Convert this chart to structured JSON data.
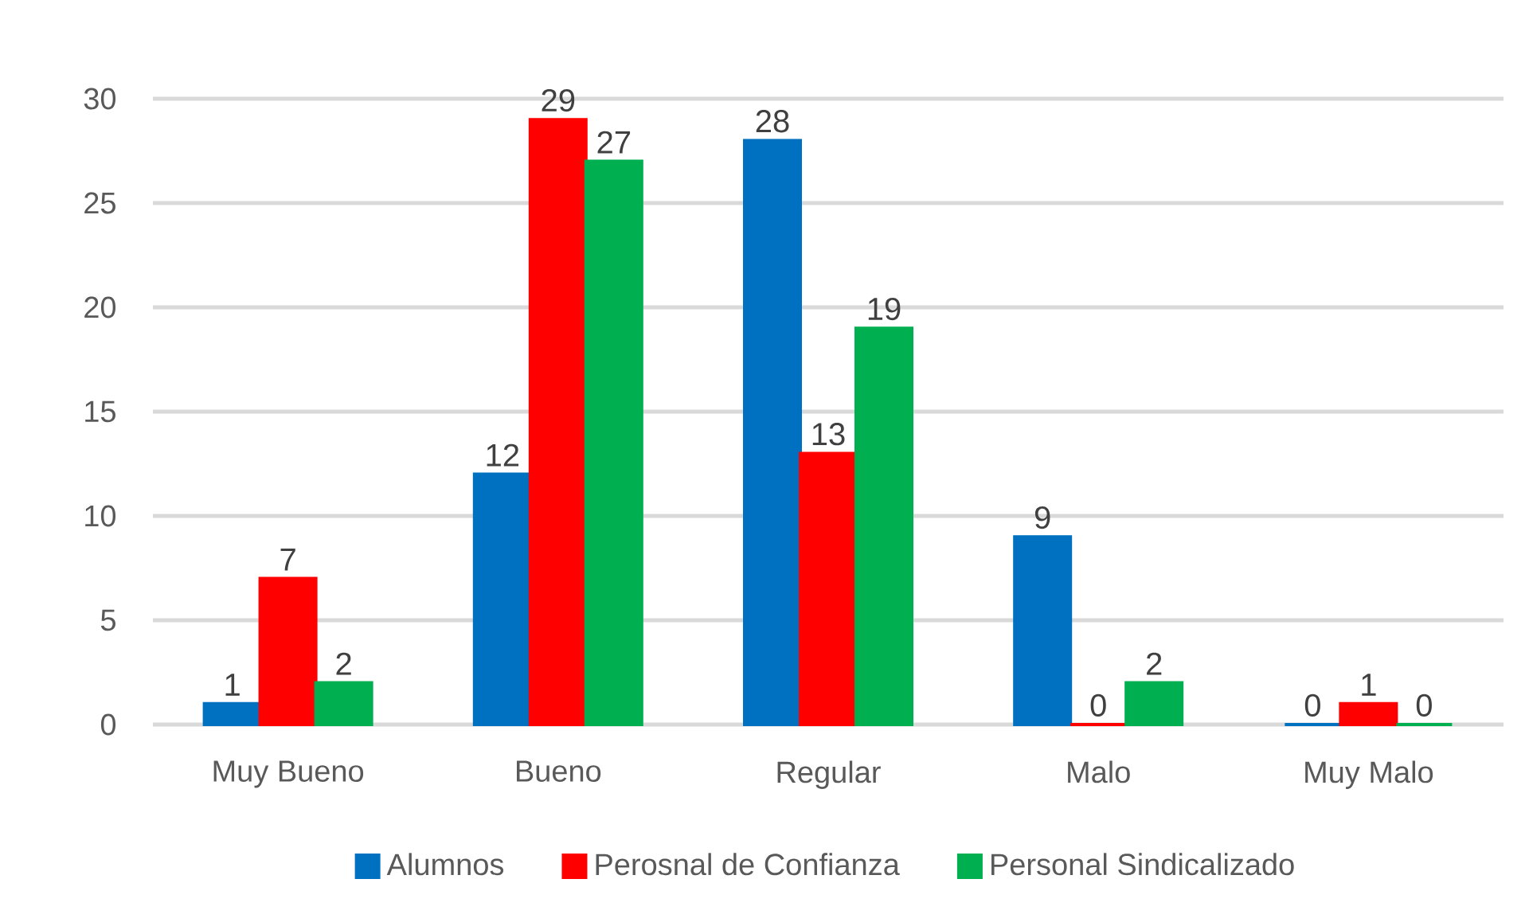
{
  "chart_data": {
    "type": "bar",
    "categories": [
      "Muy Bueno",
      "Bueno",
      "Regular",
      "Malo",
      "Muy Malo"
    ],
    "series": [
      {
        "name": "Alumnos",
        "color": "#0070c0",
        "values": [
          1,
          12,
          28,
          9,
          0
        ]
      },
      {
        "name": "Perosnal de Confianza",
        "color": "#ff0000",
        "values": [
          7,
          29,
          13,
          0,
          1
        ]
      },
      {
        "name": "Personal Sindicalizado",
        "color": "#00b050",
        "values": [
          2,
          27,
          19,
          2,
          0
        ]
      }
    ],
    "ylim": [
      0,
      30
    ],
    "yticks": [
      0,
      5,
      10,
      15,
      20,
      25,
      30
    ],
    "grid": "y",
    "legend": "bottom",
    "data_labels": true
  }
}
